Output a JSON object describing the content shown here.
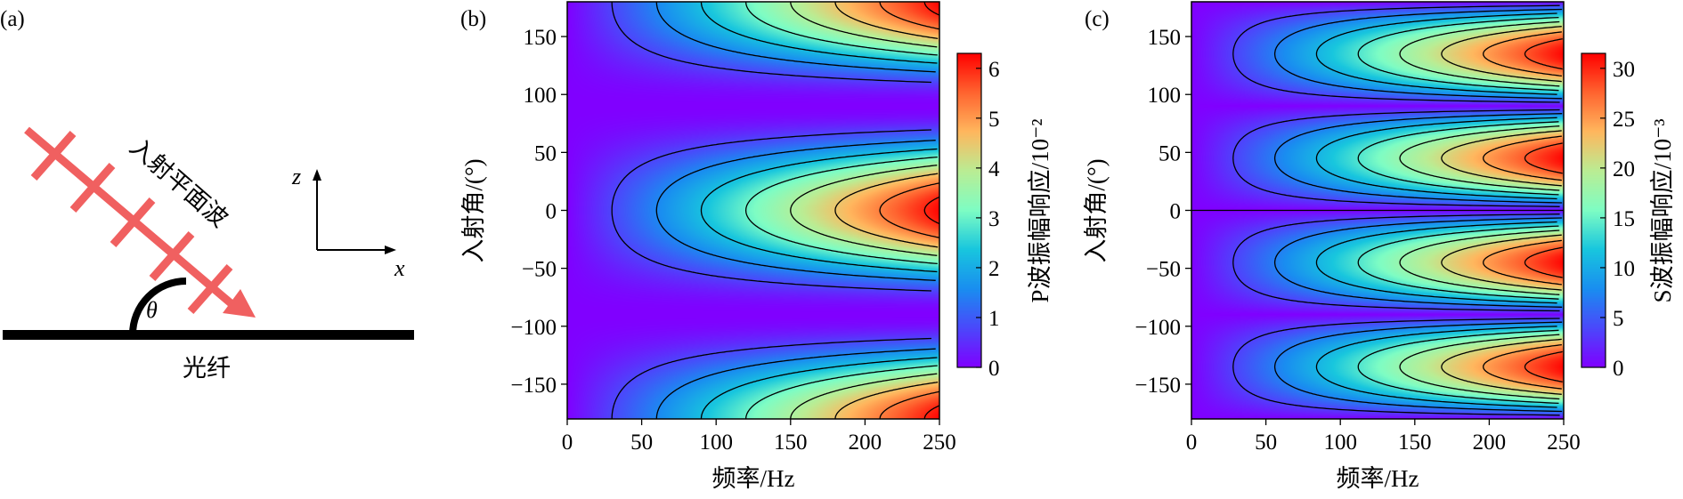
{
  "panel_a": {
    "tag": "(a)",
    "wave_label": "入射平面波",
    "angle_symbol": "θ",
    "fiber_label": "光纤",
    "axis_z": "z",
    "axis_x": "x",
    "colors": {
      "wave": "#f06060",
      "fiber": "#000000"
    }
  },
  "chart_data": [
    {
      "type": "heatmap",
      "tag": "(b)",
      "xlabel": "频率/Hz",
      "ylabel": "入射角/(°)",
      "colorbar_label": "P波振幅响应/10⁻²",
      "xlim": [
        0,
        250
      ],
      "ylim": [
        -180,
        180
      ],
      "x_ticks": [
        0,
        50,
        100,
        150,
        200,
        250
      ],
      "y_ticks": [
        150,
        100,
        50,
        0,
        -50,
        -100,
        -150
      ],
      "clim": [
        0,
        6.3
      ],
      "colorbar_ticks": [
        0,
        1,
        2,
        3,
        4,
        5,
        6
      ],
      "colormap": "rainbow",
      "model": "amplitude ∝ frequency × cos²(angle)",
      "max_value": 6.25,
      "max_at": [
        {
          "x": 250,
          "y": 0
        },
        {
          "x": 250,
          "y": 180
        },
        {
          "x": 250,
          "y": -180
        }
      ],
      "zero_along": [
        {
          "y": 90
        },
        {
          "y": -90
        }
      ],
      "contour_levels": [
        0.75,
        1.5,
        2.25,
        3.0,
        3.75,
        4.5,
        5.25,
        6.0
      ]
    },
    {
      "type": "heatmap",
      "tag": "(c)",
      "xlabel": "频率/Hz",
      "ylabel": "入射角/(°)",
      "colorbar_label": "S波振幅响应/10⁻³",
      "xlim": [
        0,
        250
      ],
      "ylim": [
        -180,
        180
      ],
      "x_ticks": [
        0,
        50,
        100,
        150,
        200,
        250
      ],
      "y_ticks": [
        150,
        100,
        50,
        0,
        -50,
        -100,
        -150
      ],
      "clim": [
        0,
        31.5
      ],
      "colorbar_ticks": [
        0,
        5,
        10,
        15,
        20,
        25,
        30
      ],
      "colormap": "rainbow",
      "model": "amplitude ∝ frequency × |sin(2·angle)|",
      "max_value": 31.25,
      "max_at": [
        {
          "x": 250,
          "y": 135
        },
        {
          "x": 250,
          "y": 45
        },
        {
          "x": 250,
          "y": -45
        },
        {
          "x": 250,
          "y": -135
        }
      ],
      "zero_along": [
        {
          "y": 0
        },
        {
          "y": 90
        },
        {
          "y": -90
        },
        {
          "y": 180
        },
        {
          "y": -180
        }
      ],
      "contour_levels": [
        3.5,
        7,
        10.5,
        14,
        17.5,
        21,
        24.5,
        28
      ]
    }
  ]
}
